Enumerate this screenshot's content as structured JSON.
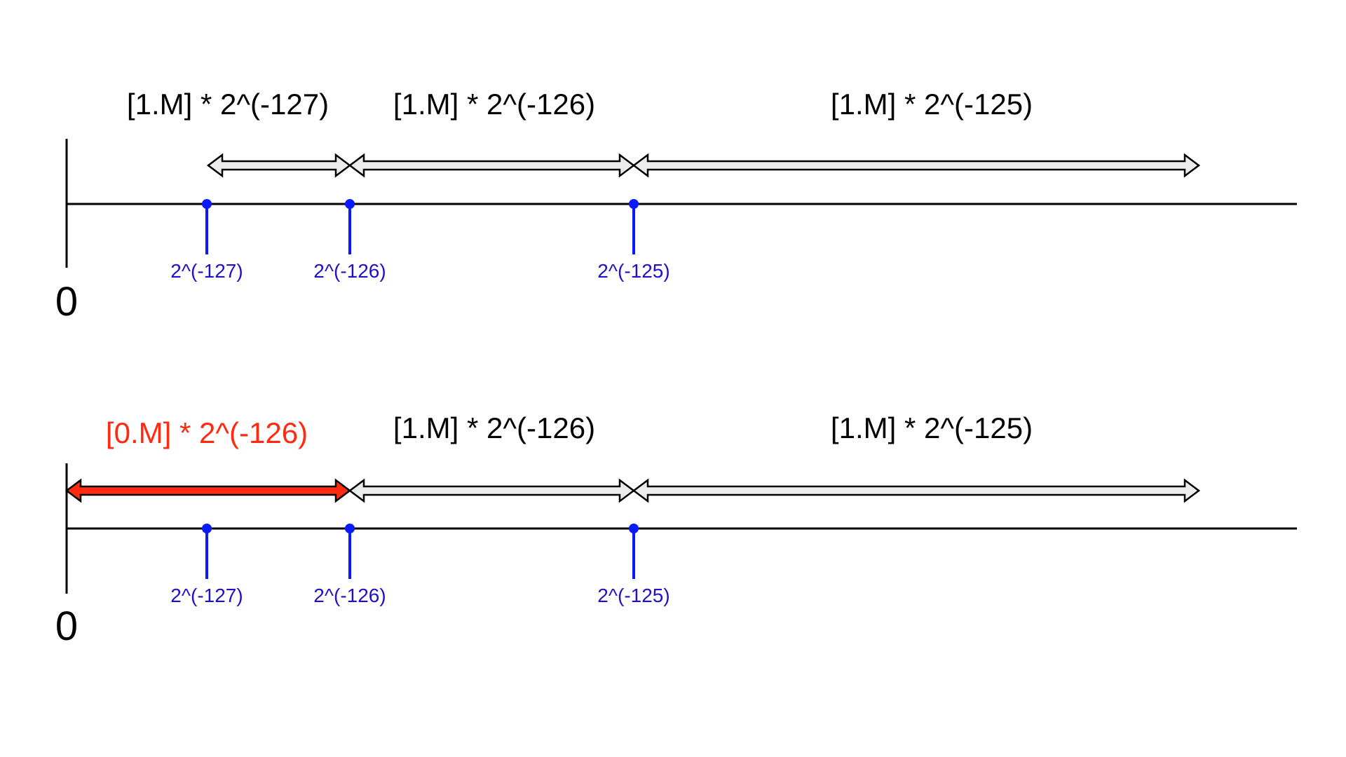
{
  "colors": {
    "axis": "#000000",
    "tick": "#0a1aff",
    "tick_text": "#1f10cc",
    "arrow_fill": "#ececec",
    "arrow_stroke": "#000000",
    "denormal_fill": "#ff2a10",
    "denormal_text": "#ff2a10"
  },
  "diagrams": [
    {
      "origin_label": "0",
      "ranges": [
        {
          "label": "[1.M] * 2^(-127)",
          "style": "normal"
        },
        {
          "label": "[1.M] * 2^(-126)",
          "style": "normal"
        },
        {
          "label": "[1.M] * 2^(-125)",
          "style": "normal"
        }
      ],
      "ticks": [
        {
          "label": "2^(-127)"
        },
        {
          "label": "2^(-126)"
        },
        {
          "label": "2^(-125)"
        }
      ]
    },
    {
      "origin_label": "0",
      "ranges": [
        {
          "label": "[0.M] * 2^(-126)",
          "style": "denormal"
        },
        {
          "label": "[1.M] * 2^(-126)",
          "style": "normal"
        },
        {
          "label": "[1.M] * 2^(-125)",
          "style": "normal"
        }
      ],
      "ticks": [
        {
          "label": "2^(-127)"
        },
        {
          "label": "2^(-126)"
        },
        {
          "label": "2^(-125)"
        }
      ]
    }
  ]
}
